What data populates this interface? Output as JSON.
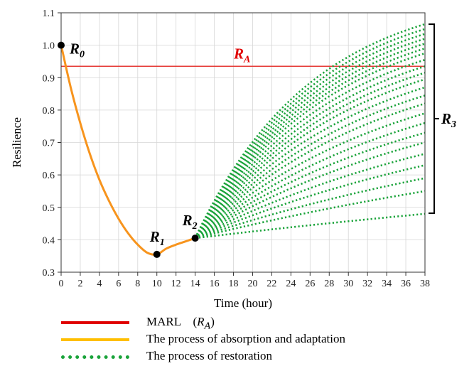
{
  "chart_data": {
    "type": "line",
    "xlabel": "Time (hour)",
    "ylabel": "Resilience",
    "xlim": [
      0,
      38
    ],
    "ylim": [
      0.3,
      1.1
    ],
    "x_ticks": [
      0,
      2,
      4,
      6,
      8,
      10,
      12,
      14,
      16,
      18,
      20,
      22,
      24,
      26,
      28,
      30,
      32,
      34,
      36,
      38
    ],
    "y_ticks": [
      "0.3",
      "0.4",
      "0.5",
      "0.6",
      "0.7",
      "0.8",
      "0.9",
      "1.0",
      "1.1"
    ],
    "grid": true,
    "legend_placement": "bottom",
    "colors": {
      "marl": "#e53935",
      "absorption": "#f7941d",
      "restoration": "#1aa33a",
      "legend_marl": "#e00000",
      "legend_absorption": "#ffbf00"
    },
    "marl_value": 0.935,
    "absorption_curve": {
      "x": [
        0,
        1,
        2,
        3,
        4,
        5,
        6,
        7,
        8,
        9,
        10,
        11,
        12,
        13,
        14
      ],
      "y": [
        1.0,
        0.87,
        0.76,
        0.665,
        0.585,
        0.52,
        0.465,
        0.42,
        0.385,
        0.36,
        0.355,
        0.373,
        0.385,
        0.395,
        0.405
      ]
    },
    "restoration": {
      "x_start": 14,
      "x_end": 38,
      "y_start": 0.405,
      "final_values": [
        1.065,
        1.05,
        1.035,
        1.02,
        1.005,
        0.99,
        0.975,
        0.955,
        0.935,
        0.915,
        0.895,
        0.87,
        0.845,
        0.82,
        0.79,
        0.76,
        0.73,
        0.7,
        0.665,
        0.63,
        0.59,
        0.55,
        0.48
      ]
    },
    "points": [
      {
        "name": "R",
        "sub": "0",
        "x": 0,
        "y": 1.0
      },
      {
        "name": "R",
        "sub": "1",
        "x": 10,
        "y": 0.355
      },
      {
        "name": "R",
        "sub": "2",
        "x": 14,
        "y": 0.405
      }
    ],
    "annotations": {
      "ra": {
        "name": "R",
        "sub": "A"
      },
      "r3": {
        "name": "R",
        "sub": "3"
      }
    },
    "legend": [
      {
        "label": "MARL　(",
        "label_name": "R",
        "label_sub": "A",
        "label_end": ")",
        "style": "solid",
        "color": "#e00000"
      },
      {
        "label": "The process of absorption and adaptation",
        "style": "solid",
        "color": "#ffbf00"
      },
      {
        "label": "The process of restoration",
        "style": "dotted",
        "color": "#1aa33a"
      }
    ]
  }
}
